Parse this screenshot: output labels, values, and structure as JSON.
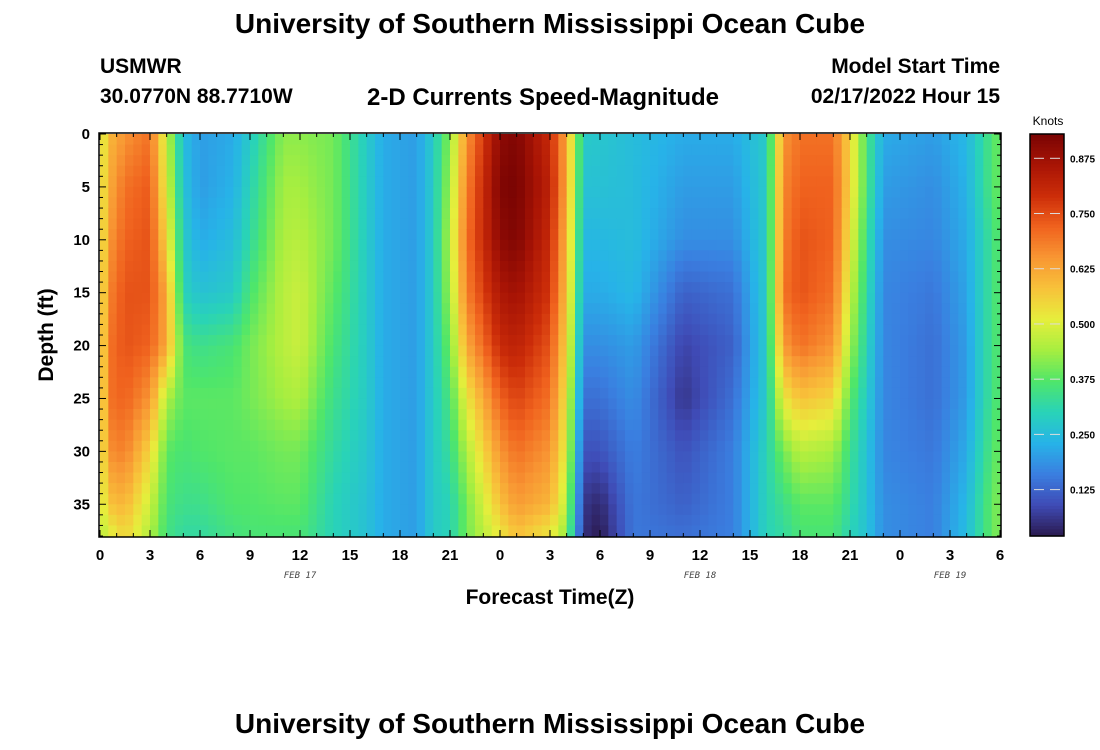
{
  "header": {
    "title": "University of Southern Mississippi Ocean Cube",
    "station": "USMWR",
    "coords": "30.0770N  88.7710W",
    "plot_title": "2-D Currents Speed-Magnitude",
    "model_label": "Model Start Time",
    "model_time": "02/17/2022 Hour 15"
  },
  "footer": {
    "title": "University of Southern Mississippi Ocean Cube"
  },
  "colors": {
    "scale": [
      "#2b1a4f",
      "#3f4bb6",
      "#3a7fe0",
      "#27b3e8",
      "#29d3b8",
      "#4fe66a",
      "#a6ee40",
      "#e6ee3c",
      "#f8c23a",
      "#f89633",
      "#f0621e",
      "#cc2d09",
      "#a81405",
      "#7a0403"
    ]
  },
  "chart_data": {
    "type": "heatmap",
    "title": "2-D Currents Speed-Magnitude",
    "xlabel": "Forecast Time(Z)",
    "ylabel": "Depth (ft)",
    "x_tick_labels": [
      "0",
      "3",
      "6",
      "9",
      "12",
      "15",
      "18",
      "21",
      "0",
      "3",
      "6",
      "9",
      "12",
      "15",
      "18",
      "21",
      "0",
      "3",
      "6"
    ],
    "x_range_hours": [
      0,
      54
    ],
    "date_labels": [
      {
        "label": "FEB 17",
        "hour": 12
      },
      {
        "label": "FEB 18",
        "hour": 36
      },
      {
        "label": "FEB 19",
        "hour": 51
      }
    ],
    "y_tick_labels": [
      "0",
      "5",
      "10",
      "15",
      "20",
      "25",
      "30",
      "35"
    ],
    "y_range_ft": [
      0,
      38
    ],
    "colorbar": {
      "label": "Knots",
      "min": 0.02,
      "max": 0.93,
      "ticks": [
        "0.875",
        "0.750",
        "0.625",
        "0.500",
        "0.375",
        "0.250",
        "0.125"
      ],
      "tick_values": [
        0.875,
        0.75,
        0.625,
        0.5,
        0.375,
        0.25,
        0.125
      ]
    },
    "columns_per_hour": 2,
    "rows": 38,
    "profile_anchor_depths_ft": [
      0,
      5,
      10,
      15,
      20,
      25,
      30,
      35,
      38
    ],
    "profiles": [
      {
        "hour": 0,
        "speeds": [
          0.48,
          0.5,
          0.5,
          0.5,
          0.5,
          0.5,
          0.5,
          0.48,
          0.45
        ]
      },
      {
        "hour": 0.6,
        "speeds": [
          0.6,
          0.62,
          0.65,
          0.68,
          0.7,
          0.7,
          0.66,
          0.58,
          0.5
        ]
      },
      {
        "hour": 1.5,
        "speeds": [
          0.65,
          0.7,
          0.72,
          0.74,
          0.74,
          0.72,
          0.68,
          0.6,
          0.55
        ]
      },
      {
        "hour": 3,
        "speeds": [
          0.7,
          0.73,
          0.74,
          0.74,
          0.72,
          0.65,
          0.55,
          0.48,
          0.45
        ]
      },
      {
        "hour": 4,
        "speeds": [
          0.48,
          0.5,
          0.55,
          0.62,
          0.62,
          0.45,
          0.38,
          0.36,
          0.35
        ]
      },
      {
        "hour": 5,
        "speeds": [
          0.25,
          0.26,
          0.28,
          0.3,
          0.36,
          0.38,
          0.36,
          0.34,
          0.32
        ]
      },
      {
        "hour": 6,
        "speeds": [
          0.2,
          0.2,
          0.22,
          0.26,
          0.34,
          0.38,
          0.37,
          0.34,
          0.32
        ]
      },
      {
        "hour": 8,
        "speeds": [
          0.22,
          0.23,
          0.25,
          0.28,
          0.36,
          0.38,
          0.38,
          0.37,
          0.35
        ]
      },
      {
        "hour": 9,
        "speeds": [
          0.28,
          0.3,
          0.32,
          0.36,
          0.4,
          0.4,
          0.38,
          0.37,
          0.36
        ]
      },
      {
        "hour": 11,
        "speeds": [
          0.42,
          0.44,
          0.45,
          0.46,
          0.46,
          0.44,
          0.4,
          0.38,
          0.36
        ]
      },
      {
        "hour": 12,
        "speeds": [
          0.42,
          0.44,
          0.46,
          0.48,
          0.48,
          0.45,
          0.4,
          0.38,
          0.36
        ]
      },
      {
        "hour": 14,
        "speeds": [
          0.4,
          0.4,
          0.4,
          0.38,
          0.36,
          0.34,
          0.32,
          0.3,
          0.3
        ]
      },
      {
        "hour": 16,
        "speeds": [
          0.28,
          0.28,
          0.28,
          0.28,
          0.28,
          0.28,
          0.27,
          0.26,
          0.26
        ]
      },
      {
        "hour": 17,
        "speeds": [
          0.22,
          0.22,
          0.22,
          0.22,
          0.22,
          0.22,
          0.22,
          0.22,
          0.22
        ]
      },
      {
        "hour": 19,
        "speeds": [
          0.2,
          0.2,
          0.2,
          0.2,
          0.2,
          0.2,
          0.2,
          0.2,
          0.2
        ]
      },
      {
        "hour": 20,
        "speeds": [
          0.28,
          0.28,
          0.28,
          0.28,
          0.28,
          0.28,
          0.28,
          0.28,
          0.28
        ]
      },
      {
        "hour": 21,
        "speeds": [
          0.42,
          0.44,
          0.46,
          0.44,
          0.4,
          0.36,
          0.33,
          0.3,
          0.3
        ]
      },
      {
        "hour": 22,
        "speeds": [
          0.65,
          0.68,
          0.7,
          0.68,
          0.62,
          0.52,
          0.45,
          0.4,
          0.4
        ]
      },
      {
        "hour": 24,
        "speeds": [
          0.9,
          0.92,
          0.9,
          0.85,
          0.8,
          0.72,
          0.65,
          0.58,
          0.52
        ]
      },
      {
        "hour": 25,
        "speeds": [
          0.92,
          0.93,
          0.92,
          0.87,
          0.82,
          0.76,
          0.7,
          0.64,
          0.58
        ]
      },
      {
        "hour": 27,
        "speeds": [
          0.8,
          0.82,
          0.8,
          0.78,
          0.74,
          0.7,
          0.65,
          0.6,
          0.52
        ]
      },
      {
        "hour": 28,
        "speeds": [
          0.62,
          0.62,
          0.6,
          0.58,
          0.55,
          0.52,
          0.5,
          0.46,
          0.42
        ]
      },
      {
        "hour": 29,
        "speeds": [
          0.28,
          0.26,
          0.24,
          0.22,
          0.18,
          0.14,
          0.1,
          0.06,
          0.05
        ]
      },
      {
        "hour": 30,
        "speeds": [
          0.27,
          0.26,
          0.24,
          0.22,
          0.18,
          0.14,
          0.1,
          0.04,
          0.02
        ]
      },
      {
        "hour": 32,
        "speeds": [
          0.25,
          0.25,
          0.25,
          0.24,
          0.2,
          0.18,
          0.16,
          0.15,
          0.15
        ]
      },
      {
        "hour": 35,
        "speeds": [
          0.22,
          0.2,
          0.18,
          0.12,
          0.08,
          0.06,
          0.1,
          0.12,
          0.14
        ]
      },
      {
        "hour": 38,
        "speeds": [
          0.22,
          0.2,
          0.18,
          0.14,
          0.12,
          0.14,
          0.16,
          0.16,
          0.16
        ]
      },
      {
        "hour": 40,
        "speeds": [
          0.28,
          0.28,
          0.28,
          0.28,
          0.28,
          0.28,
          0.3,
          0.3,
          0.3
        ]
      },
      {
        "hour": 41,
        "speeds": [
          0.65,
          0.67,
          0.68,
          0.7,
          0.64,
          0.52,
          0.4,
          0.34,
          0.32
        ]
      },
      {
        "hour": 42,
        "speeds": [
          0.7,
          0.72,
          0.74,
          0.74,
          0.7,
          0.58,
          0.46,
          0.38,
          0.36
        ]
      },
      {
        "hour": 44,
        "speeds": [
          0.7,
          0.72,
          0.72,
          0.7,
          0.65,
          0.55,
          0.44,
          0.38,
          0.36
        ]
      },
      {
        "hour": 45,
        "speeds": [
          0.55,
          0.55,
          0.52,
          0.48,
          0.44,
          0.38,
          0.34,
          0.32,
          0.3
        ]
      },
      {
        "hour": 46,
        "speeds": [
          0.36,
          0.36,
          0.34,
          0.32,
          0.3,
          0.28,
          0.26,
          0.26,
          0.26
        ]
      },
      {
        "hour": 47,
        "speeds": [
          0.22,
          0.2,
          0.18,
          0.17,
          0.17,
          0.17,
          0.17,
          0.18,
          0.18
        ]
      },
      {
        "hour": 50,
        "speeds": [
          0.2,
          0.18,
          0.17,
          0.15,
          0.14,
          0.14,
          0.15,
          0.16,
          0.16
        ]
      },
      {
        "hour": 52,
        "speeds": [
          0.24,
          0.23,
          0.22,
          0.21,
          0.2,
          0.2,
          0.22,
          0.24,
          0.25
        ]
      },
      {
        "hour": 53,
        "speeds": [
          0.32,
          0.32,
          0.3,
          0.3,
          0.3,
          0.3,
          0.32,
          0.34,
          0.34
        ]
      },
      {
        "hour": 54,
        "speeds": [
          0.4,
          0.4,
          0.38,
          0.38,
          0.38,
          0.38,
          0.4,
          0.42,
          0.42
        ]
      }
    ]
  }
}
